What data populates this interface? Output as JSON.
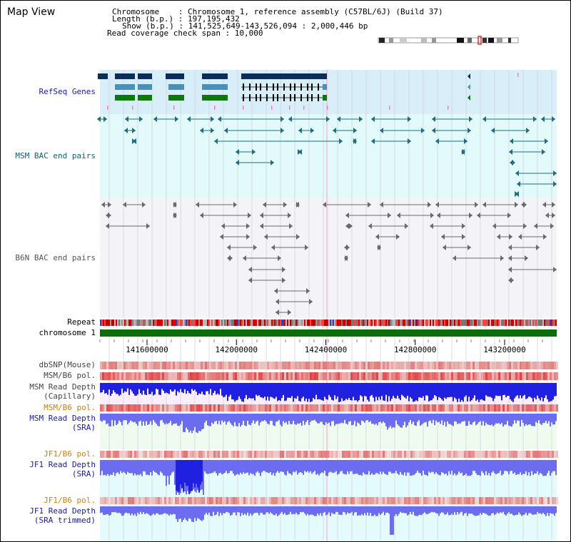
{
  "page_title": "Map View",
  "info": {
    "chromosome": "Chromosome    : Chromosome 1, reference assembly (C57BL/6J) (Build 37)",
    "length": "Length (b.p.) : 197,195,432",
    "show": "Show (b.p.) : 141,525,649-143,526,094 : 2,000,446 bp",
    "coverage": "Read coverage check span : 10,000"
  },
  "tracks": {
    "refseq": "RefSeq Genes",
    "msm_bac": "MSM BAC end pairs",
    "b6n_bac": "B6N BAC end pairs",
    "repeat": "Repeat",
    "chromosome": "chromosome 1",
    "dbsnp": "dbSNP(Mouse)",
    "msm_b6_pol_1": "MSM/B6 pol.",
    "msm_depth_cap_1": "MSM Read Depth",
    "msm_depth_cap_2": "(Capillary)",
    "msm_b6_pol_2": "MSM/B6 pol.",
    "msm_depth_sra_1": "MSM Read Depth",
    "msm_depth_sra_2": "(SRA)",
    "jf1_b6_pol_1": "JF1/B6 pol.",
    "jf1_depth_sra_1": "JF1 Read Depth",
    "jf1_depth_sra_2": "(SRA)",
    "jf1_b6_pol_2": "JF1/B6 pol.",
    "jf1_depth_trim_1": "JF1 Read Depth",
    "jf1_depth_trim_2": "(SRA trimmed)"
  },
  "axis": {
    "ticks": [
      "141600000",
      "142000000",
      "142400000",
      "142800000",
      "143200000"
    ],
    "tick_values": [
      141600000,
      142000000,
      142400000,
      142800000,
      143200000
    ],
    "start": 141525649,
    "end": 143526094
  },
  "colors": {
    "refseq_bg": "#d8effa",
    "bac_bg": "#e2fafa",
    "b6n_bg": "#f4f4f8",
    "gene_navy": "#0b2d5c",
    "gene_steel": "#4a90b8",
    "gene_green": "#0b7a0b",
    "msm_pair": "#1e6e80",
    "b6n_pair": "#6a6a6a",
    "chromosome": "#0b6e0b",
    "depth_blue": "#2020e0",
    "depth_light": "#6c6cf0"
  }
}
